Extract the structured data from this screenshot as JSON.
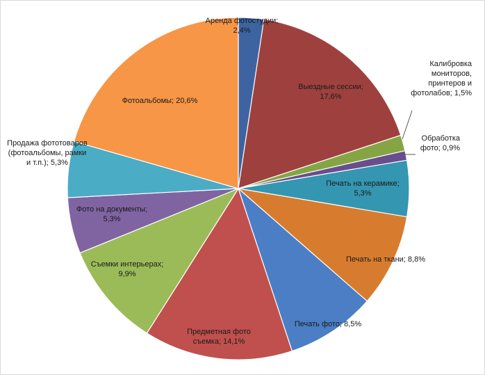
{
  "chart_data": {
    "type": "pie",
    "title": "",
    "start_angle_deg": 0,
    "direction": "clockwise",
    "slices": [
      {
        "label": [
          "Аренда фотостудии;",
          "2,4%"
        ],
        "value": 2.4,
        "color": "#3d64a0"
      },
      {
        "label": [
          "Выездные сессии;",
          "17,6%"
        ],
        "value": 17.6,
        "color": "#9e413e"
      },
      {
        "label": [
          "Калибровка",
          "мониторов,",
          "принтеров и",
          "фотолабов; 1,5%"
        ],
        "value": 1.5,
        "color": "#85a545"
      },
      {
        "label": [
          "Обработка",
          "фото; 0,9%"
        ],
        "value": 0.9,
        "color": "#6a4d8c"
      },
      {
        "label": [
          "Печать на керамике;",
          "5,3%"
        ],
        "value": 5.3,
        "color": "#3596b1"
      },
      {
        "label": [
          "Печать на ткани; 8,8%"
        ],
        "value": 8.8,
        "color": "#d77c2f"
      },
      {
        "label": [
          "Печать фото; 8,5%"
        ],
        "value": 8.5,
        "color": "#4b7ec4"
      },
      {
        "label": [
          "Предметная фото",
          "съемка; 14,1%"
        ],
        "value": 14.1,
        "color": "#c0504d"
      },
      {
        "label": [
          "Съемки интерьерах;",
          "9,9%"
        ],
        "value": 9.9,
        "color": "#9bbb59"
      },
      {
        "label": [
          "Фото на документы;",
          "5,3%"
        ],
        "value": 5.3,
        "color": "#8064a2"
      },
      {
        "label": [
          "Продажа фототоваров",
          "(фотоальбомы, рамки",
          "и т.п.); 5,3%"
        ],
        "value": 5.3,
        "color": "#4bacc6"
      },
      {
        "label": [
          "Фотоальбомы; 20,6%"
        ],
        "value": 20.6,
        "color": "#f79646"
      }
    ]
  }
}
